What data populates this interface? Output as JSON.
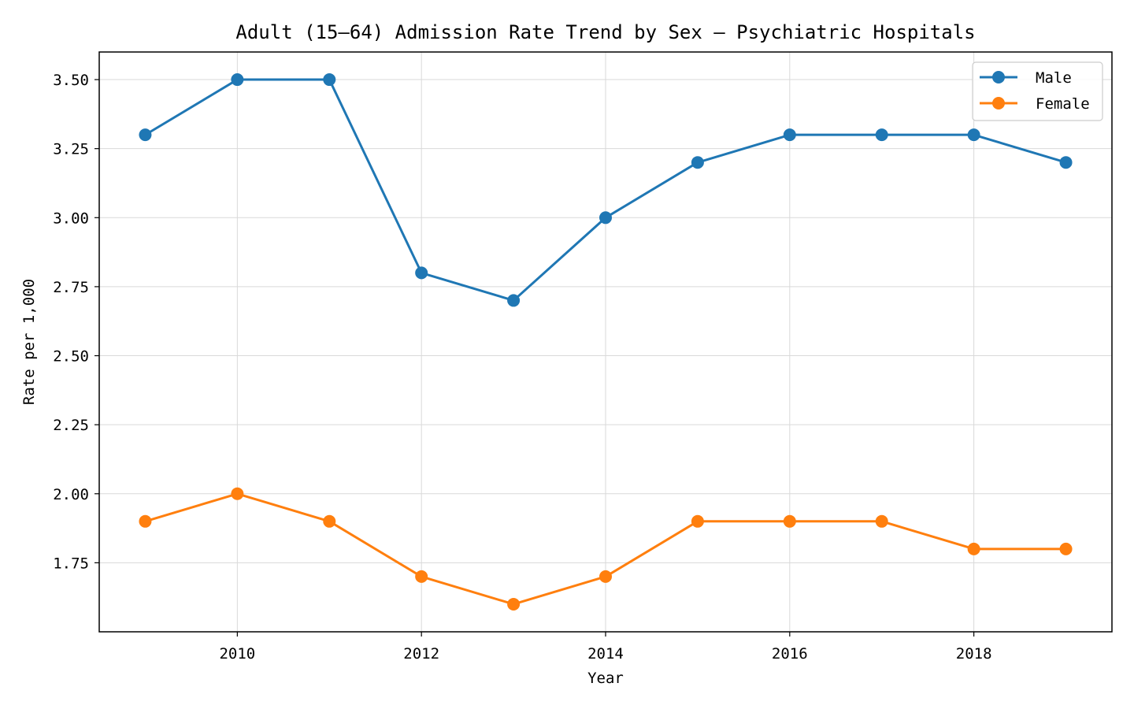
{
  "chart_data": {
    "type": "line",
    "title": "Adult (15–64) Admission Rate Trend by Sex — Psychiatric Hospitals",
    "xlabel": "Year",
    "ylabel": "Rate per 1,000",
    "x": [
      2009,
      2010,
      2011,
      2012,
      2013,
      2014,
      2015,
      2016,
      2017,
      2018,
      2019
    ],
    "xticks": [
      2010,
      2012,
      2014,
      2016,
      2018
    ],
    "yticks": [
      1.75,
      2.0,
      2.25,
      2.5,
      2.75,
      3.0,
      3.25,
      3.5
    ],
    "xlim": [
      2008.5,
      2019.5
    ],
    "ylim": [
      1.5,
      3.6
    ],
    "grid": true,
    "legend_position": "top-right",
    "series": [
      {
        "name": "Male",
        "color": "#1f77b4",
        "values": [
          3.3,
          3.5,
          3.5,
          2.8,
          2.7,
          3.0,
          3.2,
          3.3,
          3.3,
          3.3,
          3.2
        ]
      },
      {
        "name": "Female",
        "color": "#ff7f0e",
        "values": [
          1.9,
          2.0,
          1.9,
          1.7,
          1.6,
          1.7,
          1.9,
          1.9,
          1.9,
          1.8,
          1.8
        ]
      }
    ]
  }
}
